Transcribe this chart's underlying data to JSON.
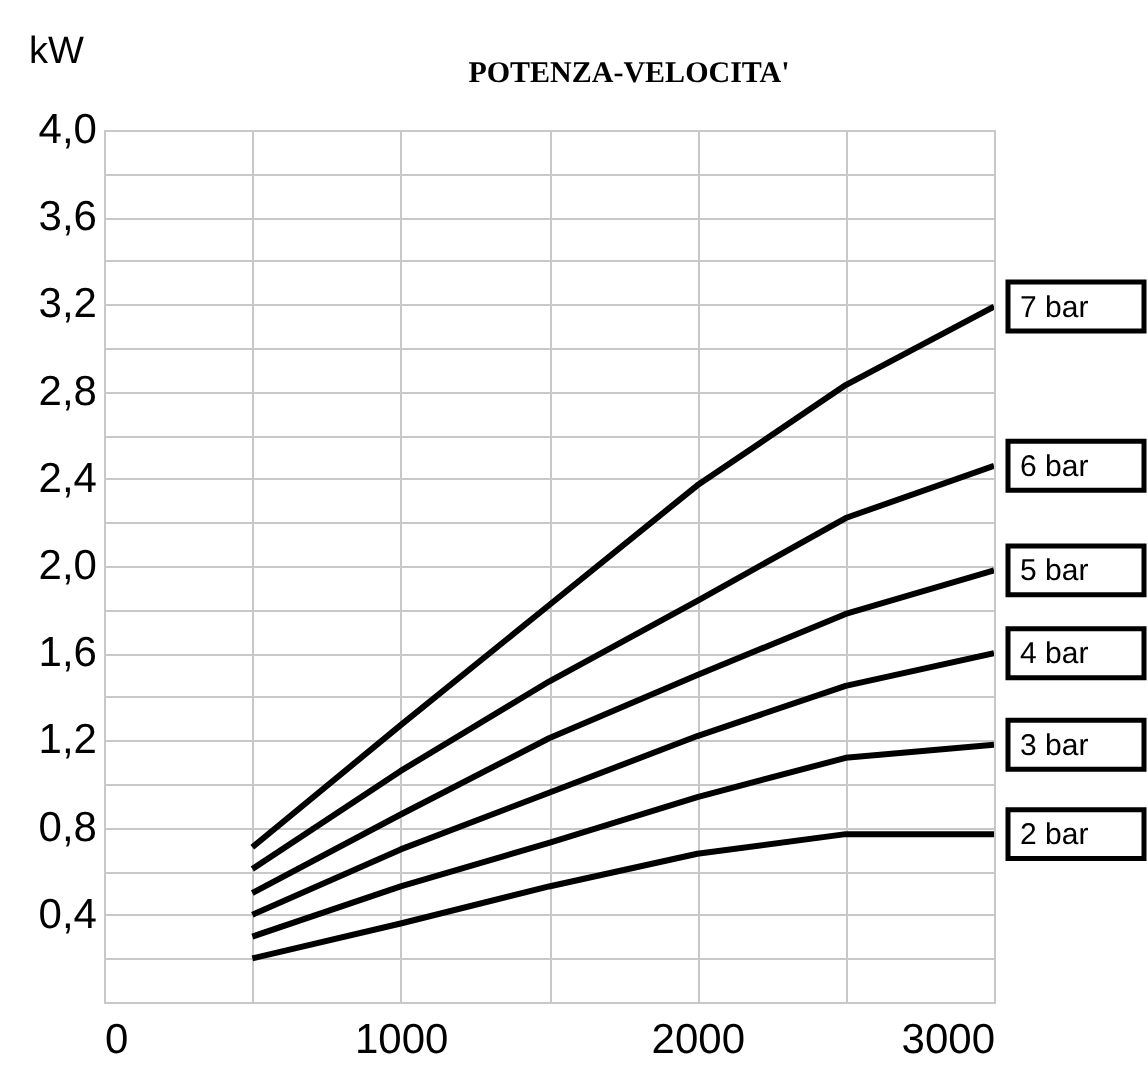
{
  "chart_data": {
    "type": "line",
    "title": "POTENZA-VELOCITA'",
    "ylabel": "kW",
    "x": [
      500,
      1000,
      1500,
      2000,
      2500,
      3000
    ],
    "series": [
      {
        "name": "7 bar",
        "color": "#000000",
        "values": [
          0.71,
          1.27,
          1.82,
          2.37,
          2.83,
          3.19
        ]
      },
      {
        "name": "6 bar",
        "color": "#000000",
        "values": [
          0.61,
          1.06,
          1.47,
          1.84,
          2.22,
          2.46
        ]
      },
      {
        "name": "5 bar",
        "color": "#000000",
        "values": [
          0.5,
          0.86,
          1.21,
          1.5,
          1.78,
          1.98
        ]
      },
      {
        "name": "4 bar",
        "color": "#000000",
        "values": [
          0.4,
          0.7,
          0.96,
          1.22,
          1.45,
          1.6
        ]
      },
      {
        "name": "3 bar",
        "color": "#000000",
        "values": [
          0.3,
          0.53,
          0.73,
          0.94,
          1.12,
          1.18
        ]
      },
      {
        "name": "2 bar",
        "color": "#000000",
        "values": [
          0.2,
          0.36,
          0.53,
          0.68,
          0.77,
          0.77
        ]
      }
    ],
    "xlim": [
      0,
      3000
    ],
    "xticks": [
      0,
      {
        "value": 500,
        "label": null
      },
      1000,
      {
        "value": 1500,
        "label": null
      },
      2000,
      {
        "value": 2500,
        "label": null
      },
      3000
    ],
    "ylim": [
      0,
      4
    ],
    "yticks": [
      {
        "value": 0.2,
        "label": null
      },
      {
        "value": 0.4,
        "label": "0,4"
      },
      {
        "value": 0.6,
        "label": null
      },
      {
        "value": 0.8,
        "label": "0,8"
      },
      {
        "value": 1.0,
        "label": null
      },
      {
        "value": 1.2,
        "label": "1,2"
      },
      {
        "value": 1.4,
        "label": null
      },
      {
        "value": 1.6,
        "label": "1,6"
      },
      {
        "value": 1.8,
        "label": null
      },
      {
        "value": 2.0,
        "label": "2,0"
      },
      {
        "value": 2.2,
        "label": null
      },
      {
        "value": 2.4,
        "label": "2,4"
      },
      {
        "value": 2.6,
        "label": null
      },
      {
        "value": 2.8,
        "label": "2,8"
      },
      {
        "value": 3.0,
        "label": null
      },
      {
        "value": 3.2,
        "label": "3,2"
      },
      {
        "value": 3.4,
        "label": null
      },
      {
        "value": 3.6,
        "label": "3,6"
      },
      {
        "value": 3.8,
        "label": null
      },
      {
        "value": 4.0,
        "label": "4,0"
      }
    ],
    "grid": true,
    "marker": "none",
    "line_style": "solid"
  }
}
